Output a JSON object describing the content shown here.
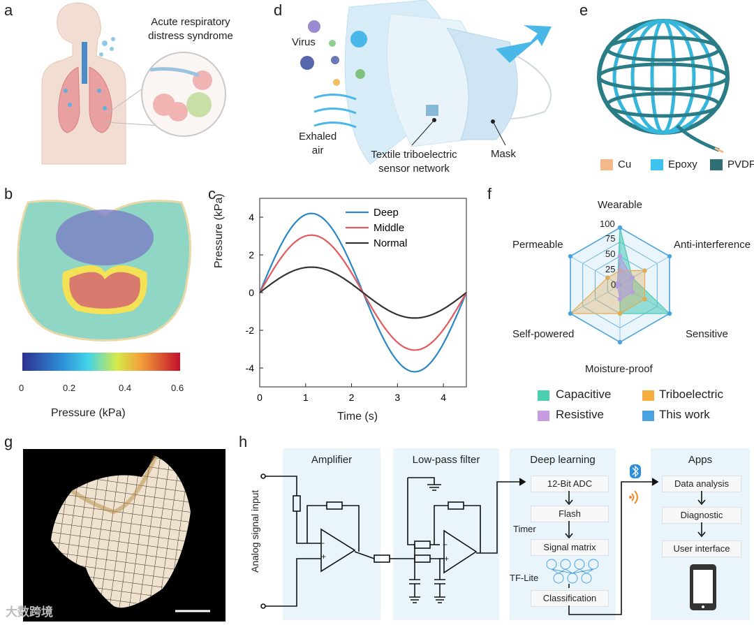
{
  "panel_letters": {
    "a": "a",
    "b": "b",
    "c": "c",
    "d": "d",
    "e": "e",
    "f": "f",
    "g": "g",
    "h": "h"
  },
  "panel_a": {
    "label_line1": "Acute respiratory",
    "label_line2": "distress syndrome"
  },
  "panel_b": {
    "colorbar_ticks": [
      "0",
      "0.2",
      "0.4",
      "0.6"
    ],
    "colorbar_label": "Pressure (kPa)"
  },
  "panel_d": {
    "virus": "Virus",
    "exhaled_1": "Exhaled",
    "exhaled_2": "air",
    "sensor_1": "Textile triboelectric",
    "sensor_2": "sensor network",
    "mask": "Mask"
  },
  "panel_e": {
    "legend": [
      {
        "name": "Cu",
        "color": "#f3b98a"
      },
      {
        "name": "Epoxy",
        "color": "#3ec3ee"
      },
      {
        "name": "PVDF",
        "color": "#2f6f73"
      }
    ]
  },
  "panel_f": {
    "axes": [
      "Wearable",
      "Anti-interference",
      "Sensitive",
      "Moisture-proof",
      "Self-powered",
      "Permeable"
    ],
    "ticks": [
      "100",
      "75",
      "50",
      "25",
      "0"
    ],
    "legend": [
      {
        "name": "Capacitive",
        "color": "#4ccfb0"
      },
      {
        "name": "Triboelectric",
        "color": "#f6ad3e"
      },
      {
        "name": "Resistive",
        "color": "#c79be0"
      },
      {
        "name": "This work",
        "color": "#4aa3df"
      }
    ]
  },
  "chart_data": {
    "type": "line",
    "xlabel": "Time (s)",
    "ylabel": "Pressure (kPa)",
    "xlim": [
      0,
      4.5
    ],
    "ylim": [
      -5,
      5
    ],
    "x_ticks": [
      "0",
      "1",
      "2",
      "3",
      "4"
    ],
    "y_ticks": [
      "4",
      "2",
      "0",
      "-2",
      "-4"
    ],
    "legend_position": "top-right",
    "series": [
      {
        "name": "Deep",
        "color": "#2a86c4",
        "amplitude": 4.2
      },
      {
        "name": "Middle",
        "color": "#e25a5e",
        "amplitude": 3.05
      },
      {
        "name": "Normal",
        "color": "#333333",
        "amplitude": 1.35
      }
    ]
  },
  "panel_h": {
    "input": "Analog signal input",
    "amplifier": "Amplifier",
    "lowpass": "Low-pass filter",
    "deep_learning": "Deep learning",
    "adc": "12-Bit ADC",
    "flash": "Flash",
    "timer": "Timer",
    "signal_matrix": "Signal matrix",
    "tflite": "TF-Lite",
    "classification": "Classification",
    "apps": "Apps",
    "data_analysis": "Data analysis",
    "diagnostic": "Diagnostic",
    "user_interface": "User interface",
    "minus": "−",
    "plus": "+"
  },
  "watermark": "大数跨境"
}
